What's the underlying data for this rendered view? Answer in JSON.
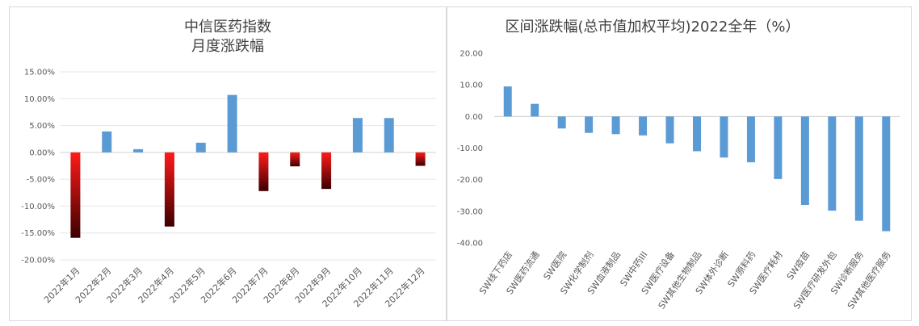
{
  "chart_data": [
    {
      "type": "bar",
      "title": "中信医药指数",
      "subtitle": "月度涨跌幅",
      "categories": [
        "2022年1月",
        "2022年2月",
        "2022年3月",
        "2022年4月",
        "2022年5月",
        "2022年6月",
        "2022年7月",
        "2022年8月",
        "2022年9月",
        "2022年10月",
        "2022年11月",
        "2022年12月"
      ],
      "values": [
        -15.9,
        3.9,
        0.6,
        -13.8,
        1.8,
        10.7,
        -7.2,
        -2.6,
        -6.8,
        6.4,
        6.4,
        -2.5
      ],
      "ylim": [
        -20,
        15
      ],
      "yticks": [
        "15.00%",
        "10.00%",
        "5.00%",
        "0.00%",
        "-5.00%",
        "-10.00%",
        "-15.00%",
        "-20.00%"
      ],
      "grid": true,
      "colors": {
        "positive": "#5b9bd5",
        "negative_top": "#ff1a1a",
        "negative_bottom": "#3d0000"
      }
    },
    {
      "type": "bar",
      "title": "区间涨跌幅(总市值加权平均)2022全年（%）",
      "categories": [
        "SW线下药店",
        "SW医药流通",
        "SW医院",
        "SW化学制剂",
        "SW血液制品",
        "SW中药III",
        "SW医疗设备",
        "SW其他生物制品",
        "SW体外诊断",
        "SW原料药",
        "SW医疗耗材",
        "SW疫苗",
        "SW医疗研发外包",
        "SW诊断服务",
        "SW其他医疗服务"
      ],
      "values": [
        9.5,
        4.0,
        -3.8,
        -5.2,
        -5.6,
        -6.0,
        -8.5,
        -11.0,
        -13.0,
        -14.5,
        -19.8,
        -28.0,
        -29.8,
        -33.0,
        -36.3
      ],
      "ylim": [
        -40,
        20
      ],
      "yticks": [
        "20.00",
        "10.00",
        "0.00",
        "-10.00",
        "-20.00",
        "-30.00",
        "-40.00"
      ],
      "grid": false,
      "colors": {
        "bar": "#5b9bd5"
      }
    }
  ]
}
